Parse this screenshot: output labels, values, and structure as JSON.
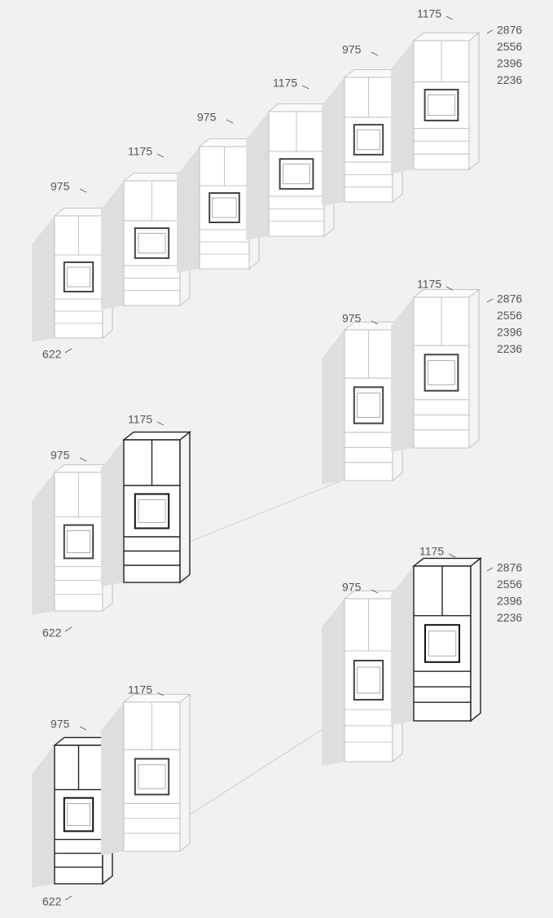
{
  "rows": [
    {
      "widths": [
        "975",
        "1175",
        "975",
        "1175",
        "975",
        "1175"
      ],
      "heights": [
        "2876",
        "2556",
        "2396",
        "2236"
      ],
      "depth": "622"
    },
    {
      "widths": [
        "975",
        "1175"
      ],
      "heights": [
        "2876",
        "2556",
        "2396",
        "2236"
      ]
    },
    {
      "widths": [
        "975",
        "1175"
      ],
      "depth": "622"
    },
    {
      "widths": [
        "975",
        "1175"
      ],
      "heights": [
        "2876",
        "2556",
        "2396",
        "2236"
      ]
    },
    {
      "widths": [
        "975",
        "1175"
      ],
      "depth": "622"
    }
  ]
}
